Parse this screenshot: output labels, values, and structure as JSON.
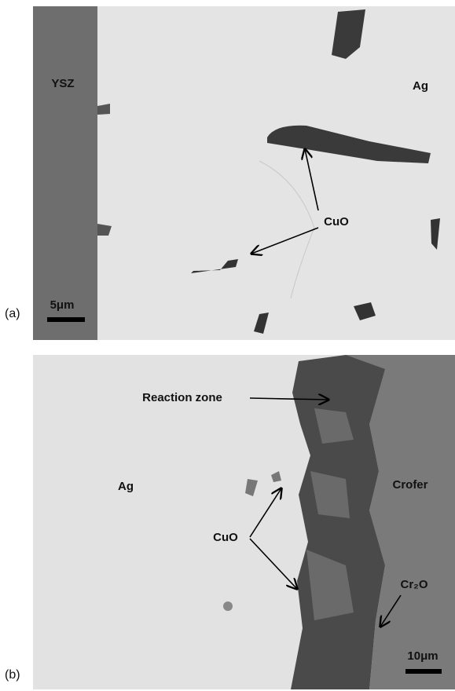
{
  "panel_a": {
    "label": "(a)",
    "phases": {
      "left": "YSZ",
      "right": "Ag"
    },
    "precipitate": "CuO",
    "scale_bar": "5μm"
  },
  "panel_b": {
    "label": "(b)",
    "phases": {
      "left": "Ag",
      "right": "Crofer"
    },
    "reaction": "Reaction zone",
    "precipitate": "CuO",
    "oxide": "Cr₂O",
    "scale_bar": "10μm"
  }
}
